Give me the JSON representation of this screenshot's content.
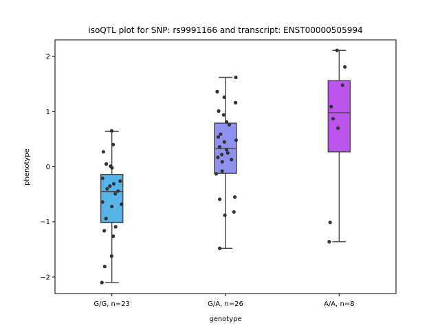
{
  "chart_data": {
    "type": "box",
    "title": "isoQTL plot for SNP: rs9991166 and transcript: ENST00000505994",
    "xlabel": "genotype",
    "ylabel": "phenotype",
    "ylim": [
      -2.3,
      2.3
    ],
    "yticks": [
      -2,
      -1,
      0,
      1,
      2
    ],
    "ytick_labels": [
      "−2",
      "−1",
      "0",
      "1",
      "2"
    ],
    "grid": false,
    "point_color": "#333333",
    "categories": [
      {
        "label": "G/G, n=23",
        "color": "#56b4e9",
        "box": {
          "whisker_low": -2.1,
          "q1": -1.01,
          "median": -0.45,
          "q3": -0.14,
          "whisker_high": 0.64
        },
        "points": [
          0.65,
          0.4,
          0.27,
          0.05,
          0.01,
          -0.02,
          -0.21,
          -0.26,
          -0.31,
          -0.35,
          -0.4,
          -0.44,
          -0.49,
          -0.64,
          -0.72,
          -0.94,
          -1.09,
          -1.16,
          -1.26,
          -1.62,
          -1.81,
          -2.1,
          -0.68
        ]
      },
      {
        "label": "G/A, n=26",
        "color": "#9090f0",
        "box": {
          "whisker_low": -1.48,
          "q1": -0.12,
          "median": 0.33,
          "q3": 0.79,
          "whisker_high": 1.62
        },
        "points": [
          1.62,
          1.36,
          1.26,
          1.16,
          1.01,
          0.94,
          0.81,
          0.76,
          0.59,
          0.54,
          0.48,
          0.45,
          0.36,
          0.31,
          0.22,
          0.17,
          0.13,
          0.09,
          -0.08,
          -0.13,
          -0.55,
          -0.59,
          -0.82,
          -0.88,
          -1.48,
          0.25
        ]
      },
      {
        "label": "A/A, n=8",
        "color": "#bb55ee",
        "box": {
          "whisker_low": -1.36,
          "q1": 0.27,
          "median": 0.98,
          "q3": 1.56,
          "whisker_high": 2.11
        },
        "points": [
          2.11,
          1.81,
          1.48,
          1.09,
          0.87,
          0.7,
          -1.01,
          -1.36
        ]
      }
    ]
  }
}
